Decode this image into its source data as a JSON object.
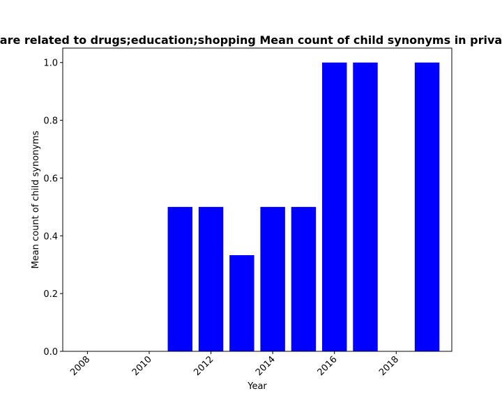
{
  "chart_data": {
    "type": "bar",
    "title": "are related to drugs;education;shopping Mean count of child synonyms in priva",
    "xlabel": "Year",
    "ylabel": "Mean count of child synonyms",
    "x": [
      2011,
      2012,
      2013,
      2014,
      2015,
      2016,
      2017,
      2019
    ],
    "values": [
      0.5,
      0.5,
      0.333,
      0.5,
      0.5,
      1.0,
      1.0,
      1.0
    ],
    "xlim": [
      2007.2,
      2019.8
    ],
    "ylim": [
      0,
      1.05
    ],
    "xticks": [
      2008,
      2010,
      2012,
      2014,
      2016,
      2018
    ],
    "xtick_labels": [
      "2008",
      "2010",
      "2012",
      "2014",
      "2016",
      "2018"
    ],
    "yticks": [
      0.0,
      0.2,
      0.4,
      0.6,
      0.8,
      1.0
    ],
    "ytick_labels": [
      "0.0",
      "0.2",
      "0.4",
      "0.6",
      "0.8",
      "1.0"
    ],
    "bar_color": "#0000ff",
    "grid": false,
    "legend": "none"
  }
}
